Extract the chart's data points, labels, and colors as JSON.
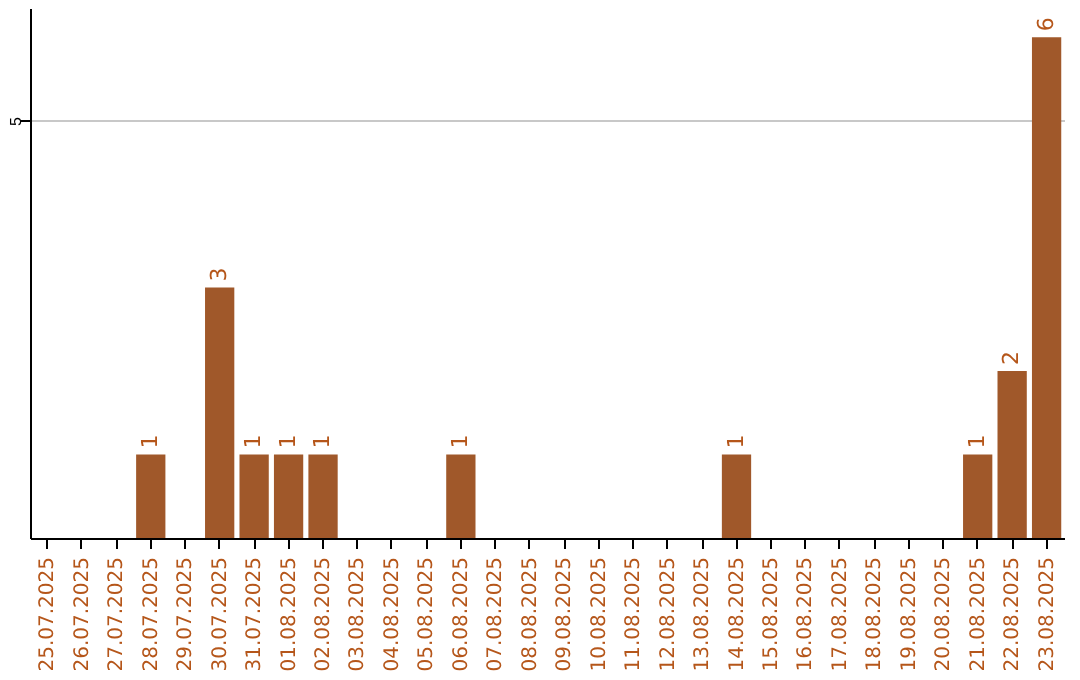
{
  "chart_data": {
    "type": "bar",
    "categories": [
      "25.07.2025",
      "26.07.2025",
      "27.07.2025",
      "28.07.2025",
      "29.07.2025",
      "30.07.2025",
      "31.07.2025",
      "01.08.2025",
      "02.08.2025",
      "03.08.2025",
      "04.08.2025",
      "05.08.2025",
      "06.08.2025",
      "07.08.2025",
      "08.08.2025",
      "09.08.2025",
      "10.08.2025",
      "11.08.2025",
      "12.08.2025",
      "13.08.2025",
      "14.08.2025",
      "15.08.2025",
      "16.08.2025",
      "17.08.2025",
      "18.08.2025",
      "19.08.2025",
      "20.08.2025",
      "21.08.2025",
      "22.08.2025",
      "23.08.2025"
    ],
    "values": [
      0,
      0,
      0,
      1,
      0,
      3,
      1,
      1,
      1,
      0,
      0,
      0,
      1,
      0,
      0,
      0,
      0,
      0,
      0,
      0,
      1,
      0,
      0,
      0,
      0,
      0,
      0,
      1,
      2,
      6
    ],
    "value_labels": [
      null,
      null,
      null,
      "1",
      null,
      "3",
      "1",
      "1",
      "1",
      null,
      null,
      null,
      "1",
      null,
      null,
      null,
      null,
      null,
      null,
      null,
      "1",
      null,
      null,
      null,
      null,
      null,
      null,
      "1",
      "2",
      "6"
    ],
    "color": "#a0582a",
    "ylim": [
      0,
      6.35
    ],
    "yticks": [
      5
    ],
    "grid": "y"
  }
}
